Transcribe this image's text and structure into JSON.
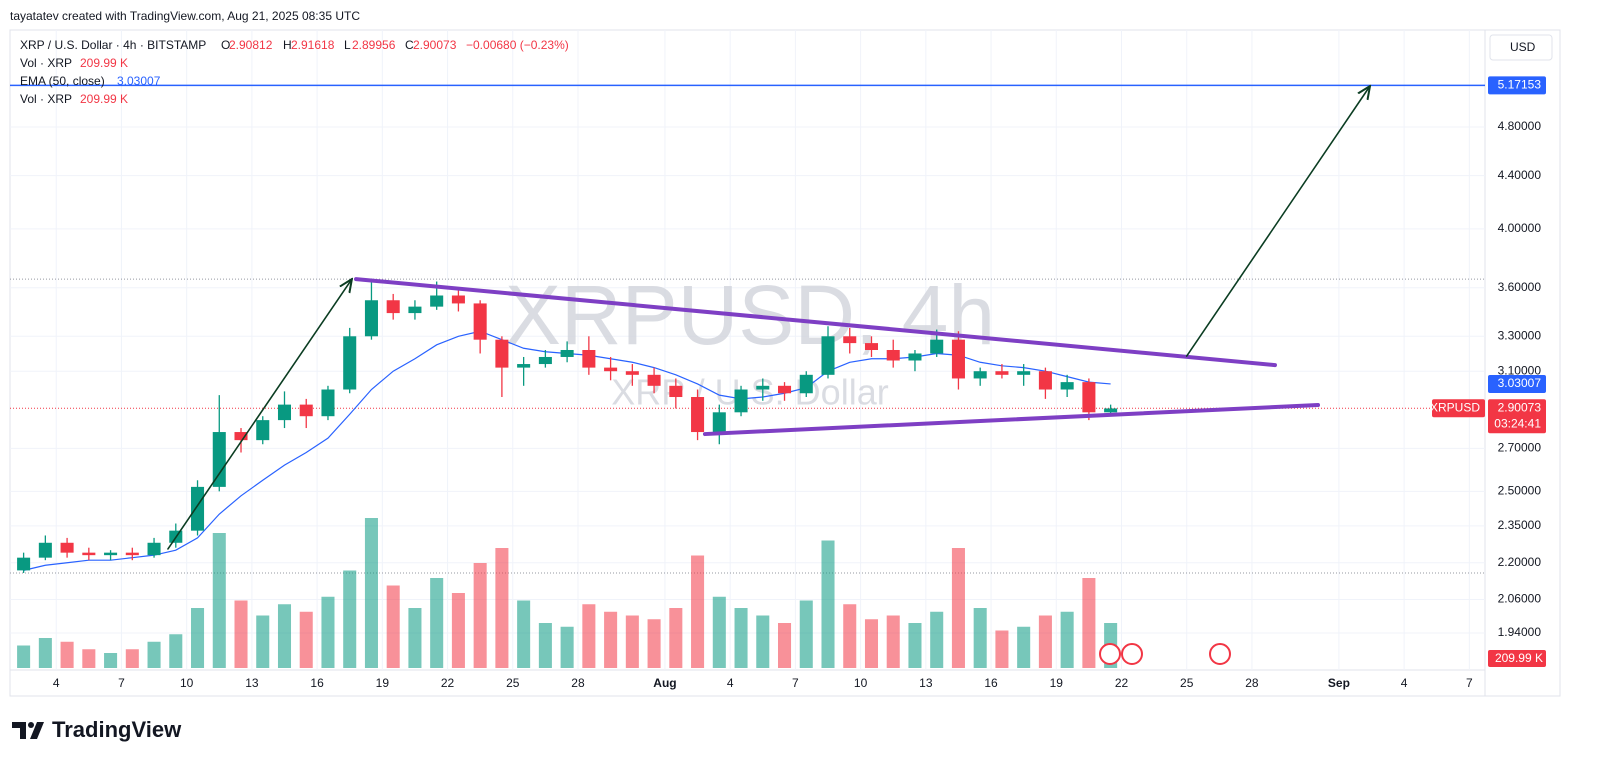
{
  "header": {
    "attribution": "tayatatev created with TradingView.com, Aug 21, 2025 08:35 UTC",
    "brand": "TradingView",
    "currency": "USD"
  },
  "chart_data": {
    "type": "candlestick",
    "log_scale": true,
    "grid": true,
    "legend": {
      "symbol": "XRP / U.S. Dollar · 4h · BITSTAMP",
      "ohlc": [
        {
          "key": "O",
          "value": 2.90812
        },
        {
          "key": "H",
          "value": 2.91618
        },
        {
          "key": "L",
          "value": 2.89956
        },
        {
          "key": "C",
          "value": 2.90073
        }
      ],
      "change": "−0.00680 (−0.23%)",
      "volume_name": "Vol · XRP"
    },
    "watermark": {
      "title": "XRPUSD, 4h",
      "subtitle": "XRP / U.S. Dollar"
    },
    "symbol_label": "XRPUSD",
    "countdown": "03:24:41",
    "last_close": 2.90073,
    "volume_last": {
      "value": 209990,
      "label": "209.99 K"
    },
    "up_color": "#089981",
    "down_color": "#f23645",
    "x": [
      1.5,
      2.5,
      3.5,
      4.5,
      5.5,
      6.5,
      7.5,
      8.5,
      9.5,
      10.5,
      11.5,
      12.5,
      13.5,
      14.5,
      15.5,
      16.5,
      17.5,
      18.5,
      19.5,
      20.5,
      21.5,
      22.5,
      23.5,
      24.5,
      25.5,
      26.5,
      27.5,
      28.5,
      29.5,
      30.5,
      31.5,
      32.5,
      33.5,
      34.5,
      35.5,
      36.5,
      37.5,
      38.5,
      39.5,
      40.5,
      41.5,
      42.5,
      43.5,
      44.5,
      45.5,
      46.5,
      47.5,
      48.5,
      49.5,
      50.5,
      51.5
    ],
    "open": [
      2.17,
      2.22,
      2.28,
      2.24,
      2.23,
      2.24,
      2.23,
      2.28,
      2.33,
      2.52,
      2.78,
      2.74,
      2.84,
      2.92,
      2.86,
      3.0,
      3.3,
      3.52,
      3.44,
      3.48,
      3.55,
      3.5,
      3.28,
      3.12,
      3.14,
      3.18,
      3.22,
      3.12,
      3.1,
      3.08,
      3.02,
      2.96,
      2.78,
      2.88,
      3.0,
      3.02,
      2.98,
      3.08,
      3.3,
      3.26,
      3.22,
      3.16,
      3.2,
      3.28,
      3.06,
      3.1,
      3.08,
      3.1,
      3.0,
      3.04,
      2.88
    ],
    "high": [
      2.24,
      2.31,
      2.3,
      2.26,
      2.25,
      2.26,
      2.3,
      2.36,
      2.55,
      2.97,
      2.8,
      2.86,
      2.99,
      2.95,
      3.02,
      3.35,
      3.66,
      3.56,
      3.52,
      3.64,
      3.6,
      3.52,
      3.3,
      3.18,
      3.22,
      3.27,
      3.3,
      3.18,
      3.14,
      3.12,
      3.06,
      3.0,
      2.92,
      3.02,
      3.06,
      3.04,
      3.1,
      3.36,
      3.35,
      3.3,
      3.28,
      3.22,
      3.34,
      3.33,
      3.12,
      3.14,
      3.14,
      3.12,
      3.08,
      3.06,
      2.92
    ],
    "low": [
      2.16,
      2.21,
      2.22,
      2.21,
      2.21,
      2.21,
      2.22,
      2.26,
      2.31,
      2.5,
      2.68,
      2.72,
      2.8,
      2.8,
      2.84,
      2.98,
      3.28,
      3.4,
      3.4,
      3.46,
      3.45,
      3.2,
      2.96,
      3.02,
      3.12,
      3.15,
      3.08,
      3.05,
      3.02,
      2.98,
      2.9,
      2.74,
      2.72,
      2.86,
      2.94,
      2.94,
      2.96,
      3.06,
      3.2,
      3.18,
      3.12,
      3.1,
      3.18,
      3.0,
      3.02,
      3.06,
      3.02,
      2.95,
      2.96,
      2.84,
      2.86
    ],
    "close": [
      2.22,
      2.28,
      2.24,
      2.23,
      2.24,
      2.23,
      2.28,
      2.33,
      2.52,
      2.78,
      2.74,
      2.84,
      2.92,
      2.86,
      3.0,
      3.3,
      3.52,
      3.44,
      3.48,
      3.55,
      3.5,
      3.28,
      3.12,
      3.14,
      3.18,
      3.22,
      3.12,
      3.1,
      3.08,
      3.02,
      2.96,
      2.78,
      2.88,
      3.0,
      3.02,
      2.98,
      3.08,
      3.3,
      3.26,
      3.22,
      3.16,
      3.2,
      3.28,
      3.06,
      3.1,
      3.08,
      3.1,
      3.0,
      3.04,
      2.88,
      2.9
    ],
    "volume": {
      "values": [
        30,
        40,
        35,
        25,
        20,
        25,
        35,
        45,
        80,
        180,
        90,
        70,
        85,
        75,
        95,
        130,
        200,
        110,
        80,
        120,
        100,
        140,
        160,
        90,
        60,
        55,
        85,
        75,
        70,
        65,
        80,
        150,
        95,
        80,
        70,
        60,
        90,
        170,
        85,
        65,
        70,
        60,
        75,
        160,
        80,
        50,
        55,
        70,
        75,
        120,
        60
      ]
    },
    "ema": {
      "name": "EMA (50, close)",
      "color": "#2962ff",
      "last": 3.03007,
      "values": [
        2.17,
        2.19,
        2.2,
        2.21,
        2.21,
        2.22,
        2.23,
        2.25,
        2.3,
        2.4,
        2.48,
        2.55,
        2.62,
        2.68,
        2.75,
        2.87,
        3.0,
        3.1,
        3.17,
        3.25,
        3.3,
        3.33,
        3.28,
        3.23,
        3.21,
        3.2,
        3.19,
        3.17,
        3.15,
        3.12,
        3.08,
        3.03,
        2.97,
        2.95,
        2.96,
        2.98,
        3.01,
        3.1,
        3.15,
        3.17,
        3.17,
        3.18,
        3.2,
        3.19,
        3.15,
        3.13,
        3.12,
        3.1,
        3.07,
        3.04,
        3.03
      ]
    },
    "drawings": [
      {
        "kind": "trend",
        "color": "#7e3fc4",
        "width": 4,
        "points": [
          [
            16.79,
            3.656
          ],
          [
            59.06,
            3.134
          ]
        ]
      },
      {
        "kind": "trend",
        "color": "#7e3fc4",
        "width": 4,
        "points": [
          [
            32.84,
            2.77
          ],
          [
            61.04,
            2.918
          ]
        ]
      },
      {
        "kind": "arrow",
        "color": "#0b3d22",
        "width": 1.6,
        "points": [
          [
            8.14,
            2.255
          ],
          [
            16.6,
            3.656
          ]
        ]
      },
      {
        "kind": "arrow",
        "color": "#0b3d22",
        "width": 1.6,
        "points": [
          [
            55.0,
            3.185
          ],
          [
            63.43,
            5.166
          ]
        ]
      }
    ],
    "hlines": [
      {
        "price": 5.17153,
        "color": "#2962ff",
        "style": "solid"
      },
      {
        "price": 3.656,
        "color": "#9598a1",
        "style": "dotted"
      },
      {
        "price": 2.16,
        "color": "#9598a1",
        "style": "dotted"
      }
    ],
    "xlim": [
      0.874,
      68.72
    ],
    "xticks": [
      {
        "value": 3,
        "label": "4"
      },
      {
        "value": 6,
        "label": "7"
      },
      {
        "value": 9,
        "label": "10"
      },
      {
        "value": 12,
        "label": "13"
      },
      {
        "value": 15,
        "label": "16"
      },
      {
        "value": 18,
        "label": "19"
      },
      {
        "value": 21,
        "label": "22"
      },
      {
        "value": 24,
        "label": "25"
      },
      {
        "value": 27,
        "label": "28"
      },
      {
        "value": 31,
        "label": "Aug"
      },
      {
        "value": 34,
        "label": "4"
      },
      {
        "value": 37,
        "label": "7"
      },
      {
        "value": 40,
        "label": "10"
      },
      {
        "value": 43,
        "label": "13"
      },
      {
        "value": 46,
        "label": "16"
      },
      {
        "value": 49,
        "label": "19"
      },
      {
        "value": 52,
        "label": "22"
      },
      {
        "value": 55,
        "label": "25"
      },
      {
        "value": 58,
        "label": "28"
      },
      {
        "value": 62,
        "label": "Sep"
      },
      {
        "value": 65,
        "label": "4"
      },
      {
        "value": 68,
        "label": "7"
      }
    ],
    "ylim": [
      1.822,
      5.711
    ],
    "yticks": [
      {
        "value": 4.8,
        "label": "4.80000"
      },
      {
        "value": 4.4,
        "label": "4.40000"
      },
      {
        "value": 4.0,
        "label": "4.00000"
      },
      {
        "value": 3.6,
        "label": "3.60000"
      },
      {
        "value": 3.3,
        "label": "3.30000"
      },
      {
        "value": 3.1,
        "label": "3.10000"
      },
      {
        "value": 2.7,
        "label": "2.70000"
      },
      {
        "value": 2.5,
        "label": "2.50000"
      },
      {
        "value": 2.35,
        "label": "2.35000"
      },
      {
        "value": 2.2,
        "label": "2.20000"
      },
      {
        "value": 2.06,
        "label": "2.06000"
      },
      {
        "value": 1.94,
        "label": "1.94000"
      }
    ]
  }
}
